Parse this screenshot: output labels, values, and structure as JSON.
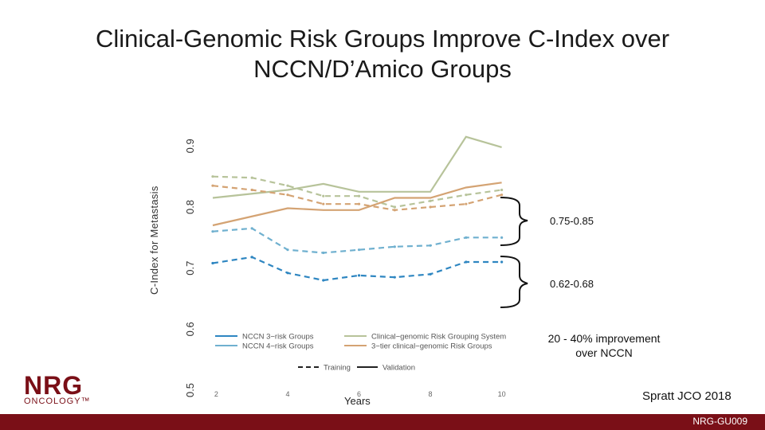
{
  "slide": {
    "title_line1": "Clinical-Genomic Risk Groups Improve C-Index over",
    "title_line2": "NCCN/D’Amico Groups",
    "improvement_line1": "20 - 40% improvement",
    "improvement_line2": "over NCCN",
    "citation": "Spratt JCO 2018",
    "footer": "NRG-GU009",
    "logo_main": "NRG",
    "logo_sub": "ONCOLOGY™"
  },
  "annotations": {
    "upper_range": "0.75-0.85",
    "lower_range": "0.62-0.68"
  },
  "colors": {
    "nccn3": "#2e86c1",
    "nccn4": "#6fb0cf",
    "clinical_system": "#b7c39a",
    "tier3": "#d4a373",
    "footer": "#7a0f17"
  },
  "chart_data": {
    "type": "line",
    "title": "",
    "xlabel": "Years",
    "ylabel": "C-Index for Metastasis",
    "xticks": [
      2,
      4,
      6,
      8,
      10
    ],
    "yticks": [
      "0.5",
      "0.6",
      "0.7",
      "0.8",
      "0.9"
    ],
    "xlim": [
      1.7,
      10.5
    ],
    "ylim": [
      0.5,
      0.95
    ],
    "series": [
      {
        "name": "Clinical-genomic Risk Grouping System",
        "style": "Validation",
        "color": "#b7c39a",
        "x": [
          1.9,
          4,
          5,
          6,
          8,
          9,
          10
        ],
        "y": [
          0.815,
          0.828,
          0.838,
          0.825,
          0.825,
          0.915,
          0.898
        ]
      },
      {
        "name": "Clinical-genomic Risk Grouping System",
        "style": "Training",
        "color": "#b7c39a",
        "x": [
          1.9,
          3,
          4,
          5,
          6,
          7,
          8,
          9,
          10
        ],
        "y": [
          0.85,
          0.848,
          0.835,
          0.818,
          0.818,
          0.8,
          0.81,
          0.82,
          0.828
        ]
      },
      {
        "name": "3-tier clinical-genomic Risk Groups",
        "style": "Validation",
        "color": "#d4a373",
        "x": [
          1.9,
          4,
          5,
          6,
          7,
          8,
          9,
          10
        ],
        "y": [
          0.77,
          0.798,
          0.795,
          0.795,
          0.815,
          0.815,
          0.832,
          0.84
        ]
      },
      {
        "name": "3-tier clinical-genomic Risk Groups",
        "style": "Training",
        "color": "#d4a373",
        "x": [
          1.9,
          3,
          4,
          5,
          6,
          7,
          8,
          9,
          10
        ],
        "y": [
          0.835,
          0.828,
          0.82,
          0.805,
          0.805,
          0.795,
          0.8,
          0.805,
          0.82
        ]
      },
      {
        "name": "NCCN 4-risk Groups",
        "style": "Training",
        "color": "#6fb0cf",
        "x": [
          1.9,
          3,
          4,
          5,
          6,
          7,
          8,
          9,
          10
        ],
        "y": [
          0.76,
          0.765,
          0.73,
          0.725,
          0.73,
          0.735,
          0.737,
          0.75,
          0.75
        ]
      },
      {
        "name": "NCCN 3-risk Groups",
        "style": "Training",
        "color": "#2e86c1",
        "x": [
          1.9,
          3,
          4,
          5,
          6,
          7,
          8,
          9,
          10
        ],
        "y": [
          0.708,
          0.718,
          0.692,
          0.68,
          0.688,
          0.685,
          0.69,
          0.71,
          0.71
        ]
      }
    ],
    "legend": {
      "placement": "bottom",
      "entries": [
        {
          "label": "NCCN 3−risk Groups",
          "color": "#2e86c1"
        },
        {
          "label": "NCCN 4−risk Groups",
          "color": "#6fb0cf"
        },
        {
          "label": "Clinical−genomic Risk Grouping System",
          "color": "#b7c39a"
        },
        {
          "label": "3−tier clinical−genomic Risk Groups",
          "color": "#d4a373"
        }
      ],
      "line_styles": [
        {
          "label": "Training",
          "dash": true
        },
        {
          "label": "Validation",
          "dash": false
        }
      ]
    }
  }
}
